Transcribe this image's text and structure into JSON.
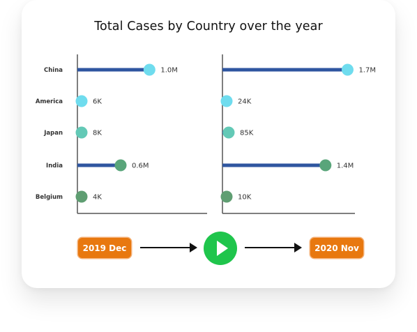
{
  "title": "Total Cases by Country over the year",
  "start_label": "2019 Dec",
  "end_label": "2020 Nov",
  "icons": {
    "play": "play-icon",
    "arrow": "arrow-right-icon"
  },
  "colors": {
    "bar": "#2f56a0",
    "start_pill": "#e8780f",
    "play": "#1fc54c"
  },
  "chart_data": [
    {
      "type": "lollipop",
      "period": "2019 Dec",
      "categories": [
        "China",
        "America",
        "Japan",
        "India",
        "Belgium"
      ],
      "values": [
        1000000,
        6000,
        8000,
        600000,
        4000
      ],
      "value_labels": [
        "1.0M",
        "6K",
        "8K",
        "0.6M",
        "4K"
      ],
      "xlim": [
        0,
        1800000
      ],
      "dot_colors": [
        "#6fdcee",
        "#6fdcee",
        "#63c9b6",
        "#59a57a",
        "#5f9e72"
      ]
    },
    {
      "type": "lollipop",
      "period": "2020 Nov",
      "categories": [
        "China",
        "America",
        "Japan",
        "India",
        "Belgium"
      ],
      "values": [
        1700000,
        24000,
        85000,
        1400000,
        10000
      ],
      "value_labels": [
        "1.7M",
        "24K",
        "85K",
        "1.4M",
        "10K"
      ],
      "xlim": [
        0,
        1800000
      ],
      "dot_colors": [
        "#6fdcee",
        "#6fdcee",
        "#63c9b6",
        "#59a57a",
        "#5f9e72"
      ]
    }
  ]
}
